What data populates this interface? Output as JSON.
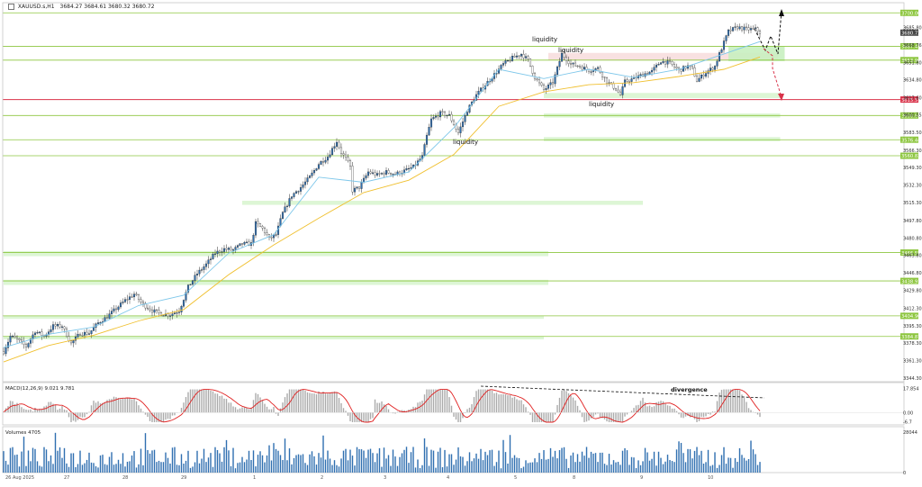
{
  "header": {
    "symbol": "XAUUSD.s,H1",
    "ohlc": "3684.27 3684.61 3680.32 3680.72"
  },
  "macd": {
    "label": "MACD(12,26,9) 9.021 9.781",
    "divergence": "divergence"
  },
  "volumes": {
    "label": "Volumes 4705"
  },
  "annotations": {
    "liquidity": [
      "liquidity",
      "liquidity",
      "liquidity",
      "liquidity"
    ]
  },
  "colors": {
    "bull": "#2f6fb0",
    "bear": "#1f2f4a",
    "ma_fast": "#7ec7ea",
    "ma_slow": "#f0c030",
    "level_green": "#8dc63f",
    "level_red": "#d9334a",
    "zone": "#d9f5d0",
    "macd_signal": "#e02020",
    "macd_hist": "#aaaaaa",
    "volume": "#2f6fb0"
  },
  "chart_data": {
    "type": "candlestick",
    "price_axis": {
      "ticks": [
        "3685.80",
        "3668.76",
        "3651.80",
        "3634.80",
        "3617.60",
        "3600.55",
        "3583.50",
        "3566.30",
        "3549.30",
        "3532.30",
        "3515.30",
        "3497.80",
        "3480.80",
        "3463.80",
        "3446.80",
        "3429.80",
        "3412.30",
        "3395.30",
        "3378.30",
        "3361.30",
        "3344.30"
      ],
      "ylim": [
        3344.3,
        3702.0
      ]
    },
    "levels": [
      {
        "value": 3700.0,
        "label": "3700.00",
        "color": "green"
      },
      {
        "value": 3667.43,
        "label": "3667.43",
        "color": "green"
      },
      {
        "value": 3653.96,
        "label": "3653.96",
        "color": "green"
      },
      {
        "value": 3615.57,
        "label": "3615.57",
        "color": "red"
      },
      {
        "value": 3600.04,
        "label": "3600.04",
        "color": "green"
      },
      {
        "value": 3576.44,
        "label": "3576.44",
        "color": "green"
      },
      {
        "value": 3560.82,
        "label": "3560.82",
        "color": "green"
      },
      {
        "value": 3466.55,
        "label": "3466.55",
        "color": "green"
      },
      {
        "value": 3438.91,
        "label": "3438.91",
        "color": "green"
      },
      {
        "value": 3404.9,
        "label": "3404.90",
        "color": "green"
      },
      {
        "value": 3384.87,
        "label": "3384.87",
        "color": "green"
      }
    ],
    "current_price": {
      "value": 3680.72,
      "label": "3680.72"
    },
    "x_ticks": [
      "26 Aug 2025",
      "27",
      "28",
      "29",
      "1",
      "2",
      "3",
      "4",
      "5",
      "8",
      "9",
      "10"
    ],
    "close_path": [
      [
        0,
        3370
      ],
      [
        3,
        3385
      ],
      [
        6,
        3382
      ],
      [
        10,
        3375
      ],
      [
        14,
        3390
      ],
      [
        18,
        3385
      ],
      [
        22,
        3395
      ],
      [
        26,
        3395
      ],
      [
        30,
        3378
      ],
      [
        34,
        3388
      ],
      [
        38,
        3388
      ],
      [
        42,
        3398
      ],
      [
        46,
        3404
      ],
      [
        50,
        3412
      ],
      [
        54,
        3420
      ],
      [
        58,
        3426
      ],
      [
        62,
        3416
      ],
      [
        66,
        3410
      ],
      [
        70,
        3407
      ],
      [
        74,
        3406
      ],
      [
        78,
        3410
      ],
      [
        82,
        3433
      ],
      [
        86,
        3446
      ],
      [
        90,
        3455
      ],
      [
        94,
        3466
      ],
      [
        98,
        3470
      ],
      [
        102,
        3469
      ],
      [
        106,
        3475
      ],
      [
        110,
        3475
      ],
      [
        112,
        3495
      ],
      [
        115,
        3490
      ],
      [
        118,
        3480
      ],
      [
        121,
        3484
      ],
      [
        124,
        3505
      ],
      [
        128,
        3522
      ],
      [
        132,
        3530
      ],
      [
        136,
        3540
      ],
      [
        140,
        3553
      ],
      [
        144,
        3560
      ],
      [
        148,
        3575
      ],
      [
        150,
        3564
      ],
      [
        152,
        3558
      ],
      [
        154,
        3550
      ],
      [
        155,
        3527
      ],
      [
        158,
        3530
      ],
      [
        162,
        3545
      ],
      [
        166,
        3542
      ],
      [
        170,
        3545
      ],
      [
        174,
        3543
      ],
      [
        178,
        3546
      ],
      [
        182,
        3550
      ],
      [
        186,
        3560
      ],
      [
        188,
        3580
      ],
      [
        190,
        3596
      ],
      [
        194,
        3602
      ],
      [
        198,
        3600
      ],
      [
        202,
        3583
      ],
      [
        206,
        3605
      ],
      [
        210,
        3620
      ],
      [
        214,
        3630
      ],
      [
        218,
        3640
      ],
      [
        222,
        3650
      ],
      [
        226,
        3656
      ],
      [
        230,
        3660
      ],
      [
        233,
        3654
      ],
      [
        236,
        3637
      ],
      [
        240,
        3625
      ],
      [
        244,
        3632
      ],
      [
        248,
        3660
      ],
      [
        252,
        3650
      ],
      [
        256,
        3648
      ],
      [
        260,
        3644
      ],
      [
        264,
        3646
      ],
      [
        268,
        3633
      ],
      [
        272,
        3626
      ],
      [
        274,
        3620
      ],
      [
        276,
        3633
      ],
      [
        280,
        3636
      ],
      [
        284,
        3640
      ],
      [
        288,
        3643
      ],
      [
        292,
        3653
      ],
      [
        296,
        3651
      ],
      [
        300,
        3644
      ],
      [
        304,
        3648
      ],
      [
        306,
        3645
      ],
      [
        308,
        3634
      ],
      [
        312,
        3642
      ],
      [
        316,
        3648
      ],
      [
        318,
        3660
      ],
      [
        322,
        3682
      ],
      [
        326,
        3686
      ],
      [
        330,
        3684
      ],
      [
        334,
        3684
      ],
      [
        336,
        3681
      ]
    ],
    "ma_fast_path": [
      [
        0,
        3374
      ],
      [
        20,
        3387
      ],
      [
        40,
        3394
      ],
      [
        60,
        3415
      ],
      [
        80,
        3425
      ],
      [
        100,
        3466
      ],
      [
        120,
        3484
      ],
      [
        140,
        3540
      ],
      [
        160,
        3535
      ],
      [
        180,
        3545
      ],
      [
        200,
        3588
      ],
      [
        220,
        3645
      ],
      [
        240,
        3636
      ],
      [
        260,
        3645
      ],
      [
        280,
        3637
      ],
      [
        300,
        3645
      ],
      [
        320,
        3660
      ],
      [
        336,
        3672
      ]
    ],
    "ma_slow_path": [
      [
        0,
        3360
      ],
      [
        20,
        3376
      ],
      [
        40,
        3386
      ],
      [
        60,
        3400
      ],
      [
        80,
        3411
      ],
      [
        100,
        3445
      ],
      [
        120,
        3474
      ],
      [
        140,
        3500
      ],
      [
        160,
        3525
      ],
      [
        180,
        3537
      ],
      [
        200,
        3562
      ],
      [
        220,
        3609
      ],
      [
        240,
        3623
      ],
      [
        260,
        3630
      ],
      [
        280,
        3632
      ],
      [
        300,
        3638
      ],
      [
        320,
        3645
      ],
      [
        336,
        3657
      ]
    ],
    "zones": [
      {
        "from": 242,
        "to": 344,
        "low": 3654,
        "high": 3661,
        "type": "liquidity-red"
      },
      {
        "from": 322,
        "to": 347,
        "low": 3653,
        "high": 3667,
        "type": "target"
      },
      {
        "from": 240,
        "to": 345,
        "low": 3617,
        "high": 3622,
        "type": "support"
      },
      {
        "from": 240,
        "to": 345,
        "low": 3598,
        "high": 3602,
        "type": "support"
      },
      {
        "from": 240,
        "to": 345,
        "low": 3575,
        "high": 3579,
        "type": "support"
      },
      {
        "from": 106,
        "to": 284,
        "low": 3513,
        "high": 3517,
        "type": "support"
      },
      {
        "from": 0,
        "to": 242,
        "low": 3463,
        "high": 3468,
        "type": "support"
      },
      {
        "from": 0,
        "to": 242,
        "low": 3435,
        "high": 3440,
        "type": "support"
      },
      {
        "from": 0,
        "to": 240,
        "low": 3402,
        "high": 3405,
        "type": "support"
      },
      {
        "from": 0,
        "to": 240,
        "low": 3382,
        "high": 3385,
        "type": "support"
      }
    ],
    "macd_axis": {
      "ticks": [
        "17.854",
        "0.00",
        "-6.7"
      ],
      "ylim": [
        -9,
        20
      ]
    },
    "volume_axis": {
      "ticks": [
        "28044",
        "0"
      ],
      "ymax": 30000
    }
  }
}
